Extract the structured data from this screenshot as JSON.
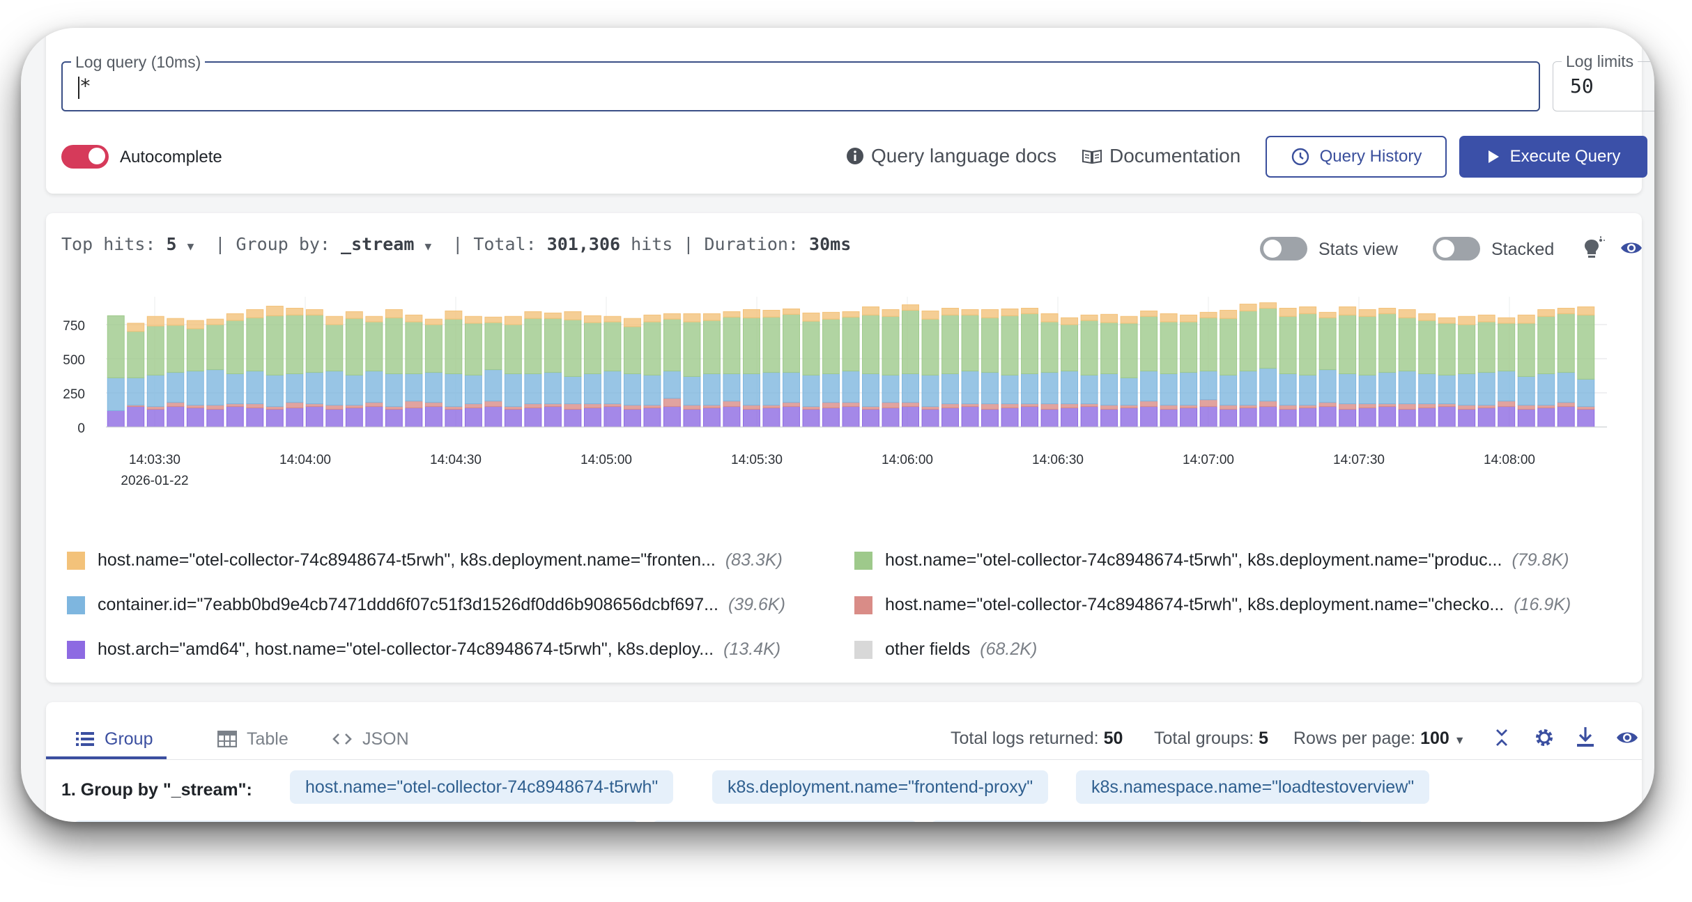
{
  "query": {
    "label": "Log query (10ms)",
    "value": "*",
    "limit_label": "Log limits",
    "limit_value": "50",
    "autocomplete_label": "Autocomplete",
    "autocomplete_on": true,
    "docs_link": "Query language docs",
    "documentation_link": "Documentation",
    "history_button": "Query History",
    "execute_button": "Execute Query"
  },
  "chart_header": {
    "top_hits_label": "Top hits:",
    "top_hits_value": "5",
    "group_by_label": "| Group by:",
    "group_by_value": "_stream",
    "total_label": "| Total:",
    "total_value": "301,306",
    "hits_label": "hits",
    "duration_label": "| Duration:",
    "duration_value": "30ms",
    "stats_view_label": "Stats view",
    "stacked_label": "Stacked"
  },
  "chart_data": {
    "type": "bar",
    "stacked": true,
    "ylim": [
      0,
      950
    ],
    "yticks": [
      0,
      250,
      500,
      750
    ],
    "xticks": [
      "14:03:30",
      "14:04:00",
      "14:04:30",
      "14:05:00",
      "14:05:30",
      "14:06:00",
      "14:06:30",
      "14:07:00",
      "14:07:30",
      "14:08:00"
    ],
    "date_label": "2026-01-22",
    "grid": true,
    "legend_position": "bottom",
    "series": [
      {
        "name": "host.name=\"otel-collector-74c8948674-t5rwh\", k8s.deployment.name=\"fronten...",
        "count": "(83.3K)",
        "color": "#f3c27a"
      },
      {
        "name": "host.name=\"otel-collector-74c8948674-t5rwh\", k8s.deployment.name=\"produc...",
        "count": "(79.8K)",
        "color": "#9ec98b"
      },
      {
        "name": "container.id=\"7eabb0bd9e4cb7471ddd6f07c51f3d1526df0dd6b908656dcbf697...",
        "count": "(39.6K)",
        "color": "#7eb6df"
      },
      {
        "name": "host.name=\"otel-collector-74c8948674-t5rwh\", k8s.deployment.name=\"checko...",
        "count": "(16.9K)",
        "color": "#d98c87"
      },
      {
        "name": "host.arch=\"amd64\", host.name=\"otel-collector-74c8948674-t5rwh\", k8s.deploy...",
        "count": "(13.4K)",
        "color": "#8d6ae2"
      },
      {
        "name": "other fields",
        "count": "(68.2K)",
        "color": "#d8d8d8"
      }
    ],
    "stack_order": [
      "purple",
      "red",
      "blue",
      "green",
      "orange"
    ],
    "totals": [
      815,
      760,
      810,
      795,
      780,
      790,
      830,
      860,
      885,
      870,
      860,
      810,
      845,
      810,
      860,
      820,
      790,
      850,
      810,
      805,
      810,
      845,
      835,
      845,
      815,
      810,
      795,
      820,
      830,
      830,
      830,
      845,
      860,
      855,
      865,
      835,
      840,
      845,
      880,
      860,
      895,
      850,
      870,
      860,
      860,
      865,
      870,
      830,
      800,
      820,
      825,
      810,
      850,
      830,
      820,
      840,
      855,
      900,
      910,
      870,
      880,
      840,
      880,
      860,
      870,
      860,
      830,
      800,
      810,
      820,
      800,
      820,
      860,
      870,
      880
    ],
    "purple": [
      120,
      150,
      130,
      150,
      140,
      130,
      150,
      140,
      130,
      140,
      150,
      130,
      140,
      150,
      130,
      140,
      150,
      130,
      140,
      150,
      130,
      140,
      150,
      130,
      140,
      150,
      130,
      140,
      150,
      130,
      140,
      150,
      130,
      140,
      150,
      130,
      140,
      150,
      130,
      140,
      150,
      130,
      140,
      150,
      130,
      140,
      150,
      130,
      140,
      150,
      130,
      140,
      150,
      130,
      140,
      150,
      130,
      140,
      150,
      130,
      140,
      150,
      130,
      140,
      150,
      130,
      140,
      150,
      130,
      140,
      150,
      130,
      140,
      150,
      130
    ],
    "red": [
      0,
      10,
      20,
      30,
      20,
      30,
      20,
      30,
      20,
      40,
      20,
      30,
      20,
      30,
      20,
      50,
      30,
      20,
      30,
      40,
      20,
      30,
      20,
      40,
      30,
      20,
      30,
      20,
      60,
      30,
      20,
      40,
      30,
      20,
      30,
      20,
      40,
      30,
      20,
      40,
      30,
      20,
      30,
      20,
      40,
      30,
      20,
      40,
      30,
      20,
      30,
      20,
      40,
      30,
      20,
      50,
      30,
      20,
      40,
      30,
      20,
      30,
      40,
      30,
      20,
      40,
      30,
      20,
      30,
      20,
      40,
      30,
      20,
      30,
      20
    ],
    "blue": [
      240,
      200,
      230,
      220,
      250,
      260,
      220,
      240,
      230,
      210,
      230,
      250,
      220,
      230,
      240,
      200,
      220,
      240,
      210,
      230,
      240,
      220,
      230,
      200,
      220,
      240,
      230,
      220,
      200,
      210,
      230,
      200,
      230,
      240,
      220,
      230,
      210,
      230,
      240,
      200,
      210,
      230,
      220,
      240,
      230,
      210,
      220,
      230,
      240,
      210,
      230,
      200,
      220,
      230,
      240,
      210,
      220,
      250,
      240,
      230,
      220,
      240,
      220,
      210,
      230,
      240,
      220,
      210,
      230,
      240,
      220,
      210,
      230,
      220,
      200
    ],
    "orange": [
      0,
      60,
      70,
      50,
      60,
      40,
      50,
      60,
      70,
      50,
      40,
      60,
      50,
      40,
      60,
      50,
      40,
      60,
      50,
      40,
      60,
      50,
      40,
      60,
      50,
      40,
      60,
      50,
      40,
      60,
      50,
      40,
      60,
      50,
      40,
      60,
      50,
      40,
      60,
      50,
      40,
      60,
      50,
      40,
      60,
      50,
      40,
      60,
      50,
      40,
      60,
      50,
      40,
      60,
      50,
      40,
      60,
      50,
      40,
      60,
      50,
      40,
      60,
      50,
      40,
      60,
      50,
      40,
      60,
      50,
      40,
      60,
      50,
      40,
      60
    ]
  },
  "results": {
    "tabs": [
      "Group",
      "Table",
      "JSON"
    ],
    "total_logs_label": "Total logs returned:",
    "total_logs_value": "50",
    "total_groups_label": "Total groups:",
    "total_groups_value": "5",
    "rows_per_page_label": "Rows per page:",
    "rows_per_page_value": "100",
    "group_title": "1. Group by \"_stream\":",
    "chips": [
      "host.name=\"otel-collector-74c8948674-t5rwh\"",
      "k8s.deployment.name=\"frontend-proxy\"",
      "k8s.namespace.name=\"loadtestoverview\""
    ]
  }
}
